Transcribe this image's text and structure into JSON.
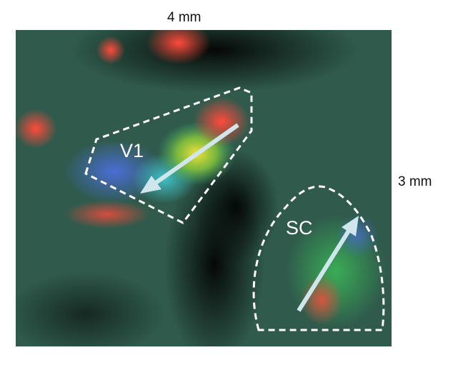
{
  "figure": {
    "scale_horizontal": "4 mm",
    "scale_vertical": "3 mm",
    "regions": [
      {
        "label": "V1"
      },
      {
        "label": "SC"
      }
    ],
    "colors": {
      "background_tissue": "#2f5a4c",
      "outline": "#ffffff",
      "arrow": "#cfe6ec"
    }
  }
}
